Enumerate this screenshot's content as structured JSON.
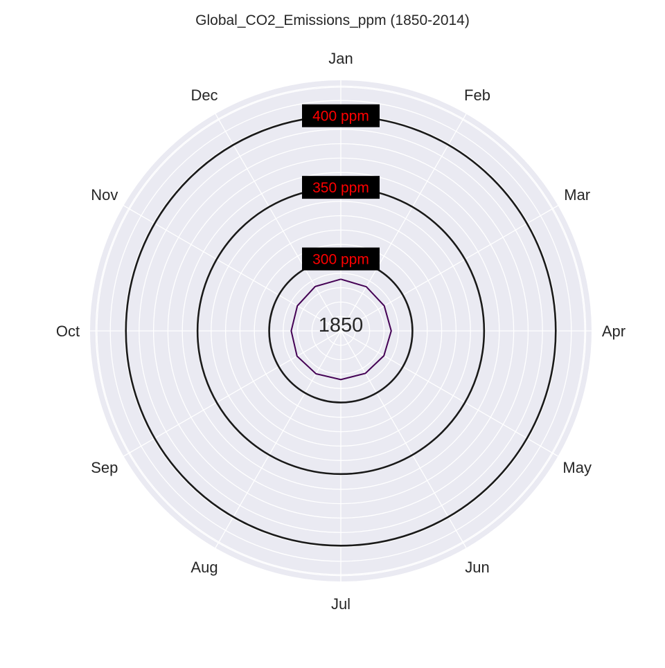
{
  "chart_data": {
    "type": "line",
    "subtype": "polar",
    "title": "Global_CO2_Emissions_ppm (1850-2014)",
    "center_label": "1850",
    "categories": [
      "Jan",
      "Feb",
      "Mar",
      "Apr",
      "May",
      "Jun",
      "Jul",
      "Aug",
      "Sep",
      "Oct",
      "Nov",
      "Dec"
    ],
    "rlim": [
      250,
      425
    ],
    "reference_rings": [
      {
        "value": 300,
        "label": "300 ppm"
      },
      {
        "value": 350,
        "label": "350 ppm"
      },
      {
        "value": 400,
        "label": "400 ppm"
      }
    ],
    "series": [
      {
        "values": [
          286.1,
          285.6,
          285.0,
          285.2,
          284.7,
          284.3,
          284.0,
          284.6,
          285.3,
          284.6,
          285.0,
          285.8
        ],
        "color": "#440154"
      }
    ],
    "grid": true,
    "colors": {
      "background": "#eaeaf2",
      "grid": "#ffffff",
      "ring": "#1a1a1a",
      "ring_label_bg": "#000000",
      "ring_label_text": "#ff0000",
      "text": "#262626"
    }
  }
}
